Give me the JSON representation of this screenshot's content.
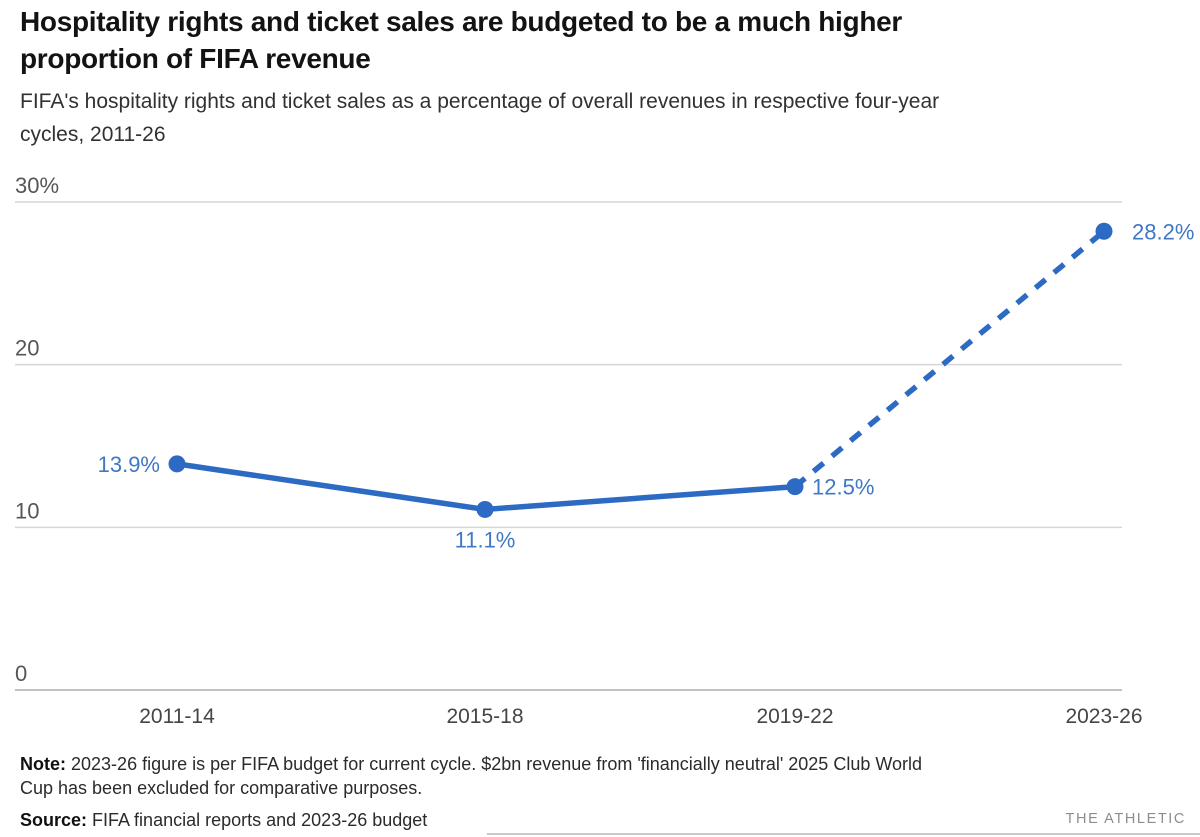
{
  "header": {
    "title": "Hospitality rights and ticket sales are budgeted to be a much higher\nproportion of FIFA revenue",
    "subtitle": "FIFA's hospitality rights and ticket sales as a percentage of overall revenues in respective four-year\ncycles, 2011-26"
  },
  "footer": {
    "note_label": "Note:",
    "note_text": "2023-26 figure is per FIFA budget for current cycle. $2bn revenue from 'financially neutral' 2025 Club World\nCup has been excluded for comparative purposes.",
    "source_label": "Source:",
    "source_text": "FIFA financial reports and 2023-26 budget",
    "brand": "THE ATHLETIC"
  },
  "chart_data": {
    "type": "line",
    "title": "Hospitality rights and ticket sales are budgeted to be a much higher proportion of FIFA revenue",
    "subtitle": "FIFA's hospitality rights and ticket sales as a percentage of overall revenues in respective four-year cycles, 2011-26",
    "categories": [
      "2011-14",
      "2015-18",
      "2019-22",
      "2023-26"
    ],
    "values": [
      13.9,
      11.1,
      12.5,
      28.2
    ],
    "point_labels": [
      "13.9%",
      "11.1%",
      "12.5%",
      "28.2%"
    ],
    "label_positions": [
      "left",
      "below",
      "right",
      "right"
    ],
    "dashed_segment_from_index": 2,
    "xlabel": "",
    "ylabel": "",
    "ylim": [
      0,
      30
    ],
    "y_ticks": [
      {
        "value": 30,
        "label": "30%"
      },
      {
        "value": 20,
        "label": "20"
      },
      {
        "value": 10,
        "label": "10"
      },
      {
        "value": 0,
        "label": "0"
      }
    ],
    "grid": true,
    "legend": "none",
    "colors": {
      "line": "#2d6ac3",
      "point": "#2d6ac3",
      "point_label": "#3f78c4",
      "grid": "#d6d6d6",
      "baseline": "#c2c2c2",
      "axis_label": "#565656",
      "x_label": "#454545"
    }
  }
}
